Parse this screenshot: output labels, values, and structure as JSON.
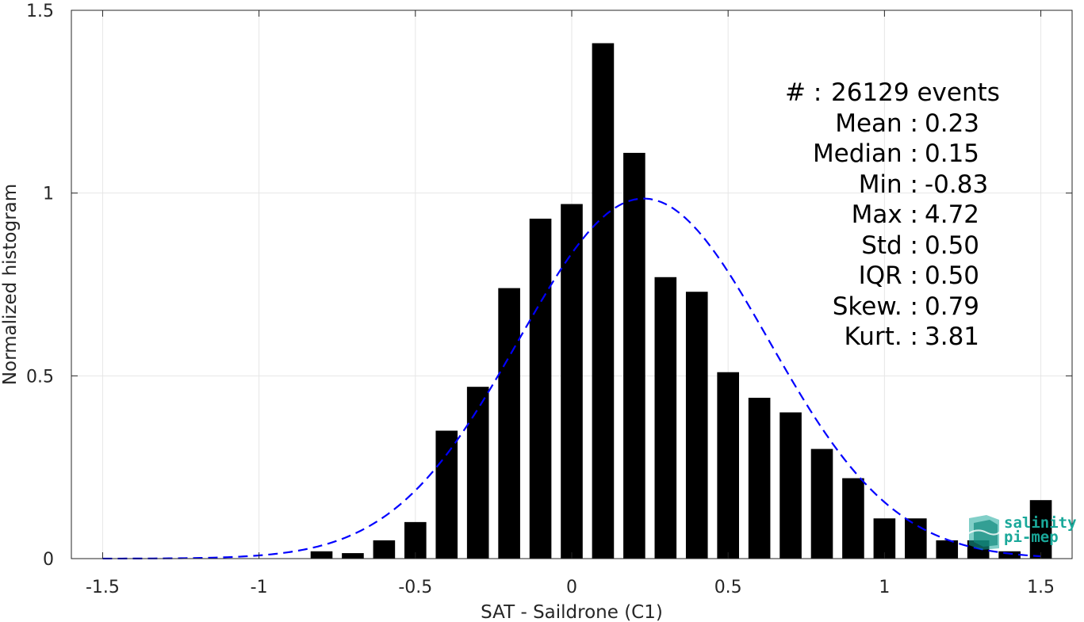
{
  "chart_data": {
    "type": "bar",
    "xlabel": "SAT - Saildrone (C1)",
    "ylabel": "Normalized histogram",
    "xlim": [
      -1.6,
      1.6
    ],
    "ylim": [
      0,
      1.5
    ],
    "xticks": [
      -1.5,
      -1,
      -0.5,
      0,
      0.5,
      1,
      1.5
    ],
    "yticks": [
      0,
      0.5,
      1,
      1.5
    ],
    "xtick_labels": [
      "-1.5",
      "-1",
      "-0.5",
      "0",
      "0.5",
      "1",
      "1.5"
    ],
    "ytick_labels": [
      "0",
      "0.5",
      "1",
      "1.5"
    ],
    "grid": true,
    "bin_width": 0.1,
    "bar_color": "#000000",
    "bars": [
      {
        "x": -0.8,
        "y": 0.02
      },
      {
        "x": -0.7,
        "y": 0.015
      },
      {
        "x": -0.6,
        "y": 0.05
      },
      {
        "x": -0.5,
        "y": 0.1
      },
      {
        "x": -0.4,
        "y": 0.35
      },
      {
        "x": -0.3,
        "y": 0.47
      },
      {
        "x": -0.2,
        "y": 0.74
      },
      {
        "x": -0.1,
        "y": 0.93
      },
      {
        "x": 0.0,
        "y": 0.97
      },
      {
        "x": 0.1,
        "y": 1.41
      },
      {
        "x": 0.2,
        "y": 1.11
      },
      {
        "x": 0.3,
        "y": 0.77
      },
      {
        "x": 0.4,
        "y": 0.73
      },
      {
        "x": 0.5,
        "y": 0.51
      },
      {
        "x": 0.6,
        "y": 0.44
      },
      {
        "x": 0.7,
        "y": 0.4
      },
      {
        "x": 0.8,
        "y": 0.3
      },
      {
        "x": 0.9,
        "y": 0.22
      },
      {
        "x": 1.0,
        "y": 0.11
      },
      {
        "x": 1.1,
        "y": 0.11
      },
      {
        "x": 1.2,
        "y": 0.05
      },
      {
        "x": 1.3,
        "y": 0.05
      },
      {
        "x": 1.4,
        "y": 0.02
      },
      {
        "x": 1.5,
        "y": 0.16
      }
    ],
    "fit_curve": {
      "type": "gaussian",
      "mean": 0.23,
      "std": 0.4,
      "peak": 0.985,
      "x_range": [
        -1.5,
        1.5
      ],
      "color": "#0000ff",
      "style": "dashed"
    }
  },
  "stats": [
    {
      "label": "#  :",
      "value": "26129 events"
    },
    {
      "label": "Mean :",
      "value": "0.23"
    },
    {
      "label": "Median :",
      "value": "0.15"
    },
    {
      "label": "Min :",
      "value": "-0.83"
    },
    {
      "label": "Max :",
      "value": "4.72"
    },
    {
      "label": "Std :",
      "value": "0.50"
    },
    {
      "label": "IQR :",
      "value": "0.50"
    },
    {
      "label": "Skew. :",
      "value": "0.79"
    },
    {
      "label": "Kurt. :",
      "value": "3.81"
    }
  ],
  "logo": {
    "line1": "salinity",
    "line2": "pi-mep",
    "color": "#1aa89a"
  }
}
